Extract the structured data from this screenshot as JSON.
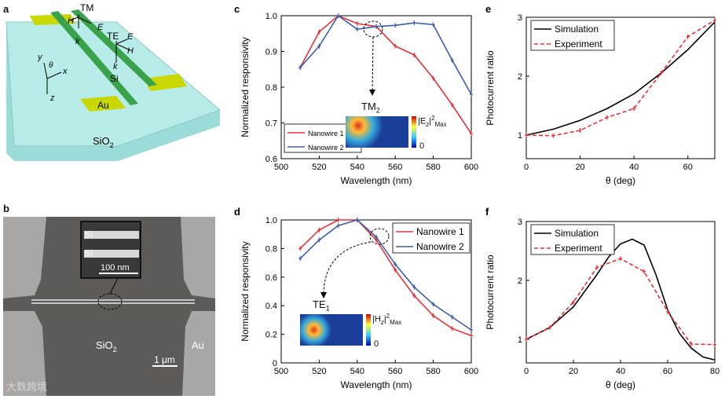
{
  "panels": {
    "a": {
      "label": "a",
      "tm": "TM",
      "te": "TE",
      "h1": "H",
      "e1": "E",
      "k1": "k",
      "e2": "E",
      "h2": "H",
      "k2": "k",
      "theta": "θ",
      "ax_x": "x",
      "ax_y": "y",
      "ax_z": "z",
      "si": "Si",
      "au": "Au",
      "sio2": "SiO",
      "sio2_sub": "2"
    },
    "b": {
      "label": "b",
      "si1": "Si",
      "si2": "Si",
      "scale_inset": "100 nm",
      "sio2": "SiO",
      "sio2_sub": "2",
      "au": "Au",
      "scale": "1 μm"
    },
    "d_inset": {
      "mode": "TE",
      "mode_sub": "1",
      "cbar": "|H",
      "cbar_sub": "z",
      "cbar_sup": "2",
      "cbar_max": "Max",
      "zero": "0"
    },
    "c_inset": {
      "mode": "TM",
      "mode_sub": "2",
      "cbar": "|E",
      "cbar_sub": "z",
      "cbar_sup": "2",
      "cbar_max": "Max",
      "zero": "0"
    }
  },
  "watermark": "大数跨境",
  "chart_data": [
    {
      "id": "c",
      "panel_label": "c",
      "type": "line",
      "xlabel": "Wavelength (nm)",
      "ylabel": "Normalized responsivity",
      "xlim": [
        500,
        600
      ],
      "ylim": [
        0.6,
        1.0
      ],
      "xticks": [
        "500",
        "520",
        "540",
        "560",
        "580",
        "600"
      ],
      "yticks": [
        "0.6",
        "0.7",
        "0.8",
        "0.9",
        "1.0"
      ],
      "legend": "bottom-left",
      "series": [
        {
          "name": "Nanowire 1",
          "color": "#e8303a",
          "x": [
            510,
            520,
            530,
            540,
            550,
            560,
            570,
            580,
            590,
            600
          ],
          "y": [
            0.855,
            0.955,
            1.0,
            0.978,
            0.97,
            0.915,
            0.89,
            0.825,
            0.75,
            0.67
          ]
        },
        {
          "name": "Nanowire 2",
          "color": "#3a5ea8",
          "x": [
            510,
            520,
            530,
            540,
            550,
            560,
            570,
            580,
            590,
            600
          ],
          "y": [
            0.855,
            0.915,
            1.0,
            0.962,
            0.97,
            0.973,
            0.98,
            0.975,
            0.875,
            0.78
          ]
        }
      ]
    },
    {
      "id": "d",
      "panel_label": "d",
      "type": "line",
      "xlabel": "Wavelength (nm)",
      "ylabel": "Normalized responsivity",
      "xlim": [
        500,
        600
      ],
      "ylim": [
        0,
        1.0
      ],
      "xticks": [
        "500",
        "520",
        "540",
        "560",
        "580",
        "600"
      ],
      "yticks": [
        "0",
        "0.2",
        "0.4",
        "0.6",
        "0.8",
        "1.0"
      ],
      "legend": "top-right",
      "series": [
        {
          "name": "Nanowire 1",
          "color": "#e8303a",
          "x": [
            510,
            520,
            530,
            540,
            550,
            560,
            570,
            580,
            590,
            600
          ],
          "y": [
            0.8,
            0.93,
            1.0,
            1.0,
            0.86,
            0.65,
            0.47,
            0.33,
            0.24,
            0.19
          ]
        },
        {
          "name": "Nanowire 2",
          "color": "#3a5ea8",
          "x": [
            510,
            520,
            530,
            540,
            550,
            560,
            570,
            580,
            590,
            600
          ],
          "y": [
            0.73,
            0.86,
            0.96,
            1.0,
            0.88,
            0.69,
            0.53,
            0.41,
            0.32,
            0.23
          ]
        }
      ]
    },
    {
      "id": "e",
      "panel_label": "e",
      "type": "line",
      "xlabel": "θ (deg)",
      "ylabel": "Photocurrent ratio",
      "xlim": [
        0,
        70
      ],
      "ylim": [
        0.6,
        3.0
      ],
      "xticks": [
        "0",
        "20",
        "40",
        "60"
      ],
      "yticks": [
        "1",
        "2",
        "3"
      ],
      "legend": "top-left",
      "series": [
        {
          "name": "Simulation",
          "color": "#000000",
          "dashed": false,
          "x": [
            0,
            10,
            20,
            30,
            40,
            50,
            60,
            70
          ],
          "y": [
            1.0,
            1.1,
            1.25,
            1.45,
            1.7,
            2.05,
            2.45,
            2.92
          ]
        },
        {
          "name": "Experiment",
          "color": "#e8303a",
          "dashed": true,
          "x": [
            0,
            10,
            20,
            30,
            40,
            50,
            60,
            70
          ],
          "y": [
            1.0,
            0.99,
            1.08,
            1.3,
            1.45,
            2.05,
            2.67,
            2.95
          ]
        }
      ]
    },
    {
      "id": "f",
      "panel_label": "f",
      "type": "line",
      "xlabel": "θ (deg)",
      "ylabel": "Photocurrent ratio",
      "xlim": [
        0,
        80
      ],
      "ylim": [
        0.6,
        3.0
      ],
      "xticks": [
        "0",
        "20",
        "40",
        "60",
        "80"
      ],
      "yticks": [
        "1",
        "2",
        "3"
      ],
      "legend": "top-right",
      "series": [
        {
          "name": "Simulation",
          "color": "#000000",
          "dashed": false,
          "x": [
            0,
            10,
            20,
            30,
            35,
            40,
            45,
            50,
            55,
            60,
            65,
            70,
            75,
            80
          ],
          "y": [
            1.0,
            1.2,
            1.55,
            2.1,
            2.4,
            2.62,
            2.7,
            2.6,
            2.1,
            1.5,
            1.1,
            0.85,
            0.7,
            0.65
          ]
        },
        {
          "name": "Experiment",
          "color": "#e8303a",
          "dashed": true,
          "x": [
            0,
            10,
            20,
            30,
            40,
            50,
            60,
            70,
            80
          ],
          "y": [
            1.0,
            1.2,
            1.63,
            2.22,
            2.37,
            2.15,
            1.47,
            0.92,
            0.91
          ]
        }
      ]
    }
  ]
}
